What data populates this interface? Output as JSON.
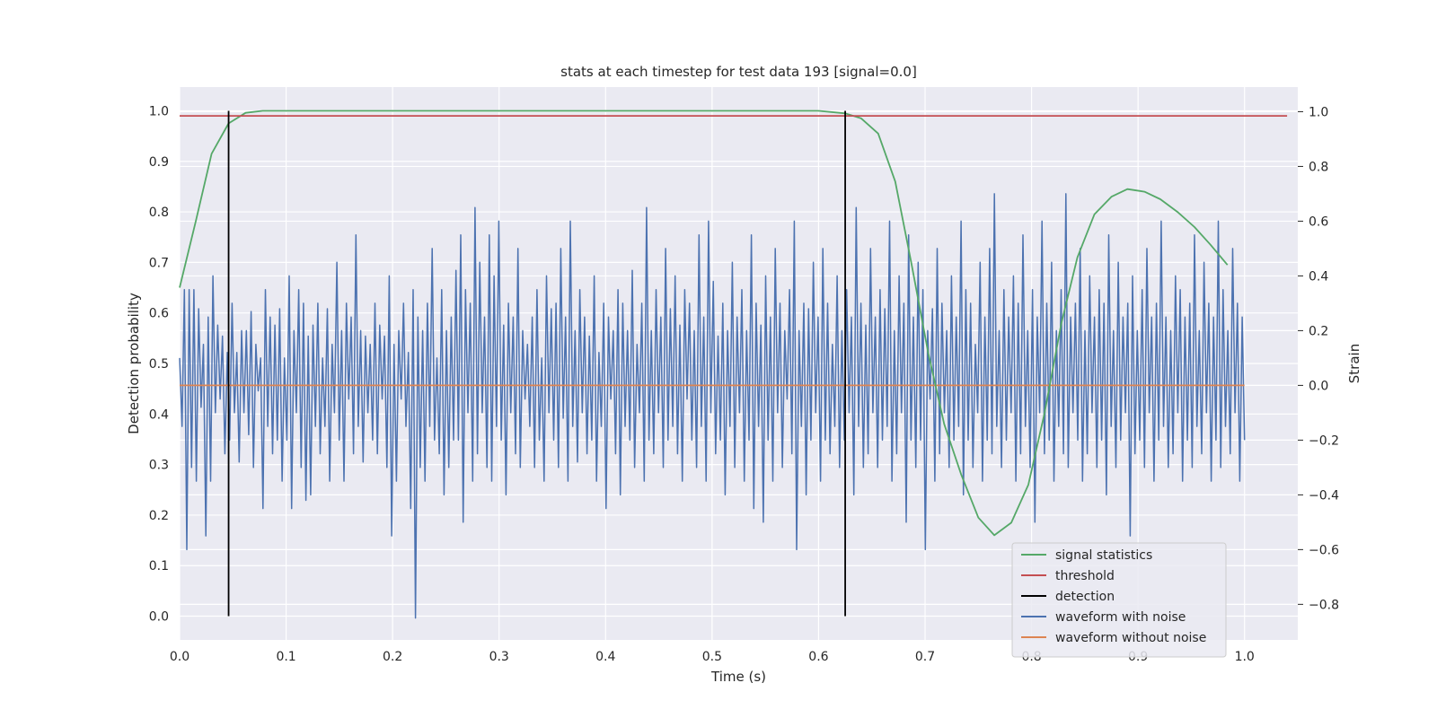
{
  "chart_data": {
    "type": "line",
    "title": "stats at each timestep for test data 193 [signal=0.0]",
    "xlabel": "Time (s)",
    "ylabel": "Detection probability",
    "ylabel_right": "Strain",
    "xlim": [
      0.0,
      1.05
    ],
    "ylim": [
      -0.047,
      1.047
    ],
    "ylim_right": [
      -0.93,
      1.09
    ],
    "x_ticks": [
      0.0,
      0.1,
      0.2,
      0.3,
      0.4,
      0.5,
      0.6,
      0.7,
      0.8,
      0.9,
      1.0
    ],
    "x_tick_labels": [
      "0.0",
      "0.1",
      "0.2",
      "0.3",
      "0.4",
      "0.5",
      "0.6",
      "0.7",
      "0.8",
      "0.9",
      "1.0"
    ],
    "y_ticks": [
      0.0,
      0.1,
      0.2,
      0.3,
      0.4,
      0.5,
      0.6,
      0.7,
      0.8,
      0.9,
      1.0
    ],
    "y_tick_labels": [
      "0.0",
      "0.1",
      "0.2",
      "0.3",
      "0.4",
      "0.5",
      "0.6",
      "0.7",
      "0.8",
      "0.9",
      "1.0"
    ],
    "y_right_ticks": [
      -0.8,
      -0.6,
      -0.4,
      -0.2,
      0.0,
      0.2,
      0.4,
      0.6,
      0.8,
      1.0
    ],
    "y_right_tick_labels": [
      "−0.8",
      "−0.6",
      "−0.4",
      "−0.2",
      "0.0",
      "0.2",
      "0.4",
      "0.6",
      "0.8",
      "1.0"
    ],
    "grid": true,
    "legend_position": "lower-right",
    "colors": {
      "signal_statistics": "#55a868",
      "threshold": "#c44e52",
      "detection": "#000000",
      "waveform_with_noise": "#4c72b0",
      "waveform_without_noise": "#dd8452",
      "axes_background": "#eaeaf2",
      "grid": "#ffffff"
    },
    "series": [
      {
        "name": "signal statistics",
        "axis": "left",
        "x": [
          0.0,
          0.015,
          0.03,
          0.046,
          0.062,
          0.078,
          0.1,
          0.2,
          0.3,
          0.4,
          0.5,
          0.6,
          0.625,
          0.64,
          0.656,
          0.672,
          0.687,
          0.703,
          0.718,
          0.734,
          0.75,
          0.765,
          0.781,
          0.797,
          0.812,
          0.828,
          0.843,
          0.859,
          0.875,
          0.89,
          0.906,
          0.921,
          0.937,
          0.953,
          0.968,
          0.984
        ],
        "values": [
          0.65,
          0.78,
          0.915,
          0.975,
          0.996,
          1.0,
          1.0,
          1.0,
          1.0,
          1.0,
          1.0,
          1.0,
          0.995,
          0.985,
          0.955,
          0.86,
          0.7,
          0.52,
          0.38,
          0.28,
          0.195,
          0.16,
          0.185,
          0.26,
          0.4,
          0.58,
          0.71,
          0.795,
          0.83,
          0.845,
          0.84,
          0.825,
          0.8,
          0.77,
          0.735,
          0.695
        ]
      },
      {
        "name": "threshold",
        "axis": "left",
        "x": [
          0.0,
          1.04
        ],
        "values": [
          0.99,
          0.99
        ]
      },
      {
        "name": "detection",
        "axis": "left",
        "segments": [
          {
            "x": 0.046,
            "values": [
              0.0,
              1.0
            ]
          },
          {
            "x": 0.625,
            "values": [
              0.0,
              1.0
            ]
          }
        ]
      },
      {
        "name": "waveform with noise",
        "axis": "right",
        "x_start": 0.0,
        "x_end": 1.0,
        "values": [
          0.1,
          -0.15,
          0.35,
          -0.6,
          0.35,
          -0.3,
          0.35,
          -0.35,
          0.28,
          -0.08,
          0.15,
          -0.55,
          0.25,
          -0.35,
          0.4,
          -0.1,
          0.22,
          -0.05,
          0.18,
          -0.25,
          0.12,
          -0.2,
          0.3,
          -0.1,
          0.12,
          -0.28,
          0.2,
          -0.1,
          0.2,
          -0.18,
          0.27,
          -0.3,
          0.15,
          -0.02,
          0.1,
          -0.45,
          0.35,
          -0.15,
          0.25,
          -0.25,
          0.22,
          -0.2,
          0.28,
          -0.35,
          0.1,
          -0.2,
          0.4,
          -0.45,
          0.2,
          -0.1,
          0.35,
          -0.3,
          0.3,
          -0.42,
          0.18,
          -0.4,
          0.22,
          -0.15,
          0.3,
          -0.25,
          0.1,
          -0.15,
          0.28,
          -0.35,
          0.15,
          -0.1,
          0.45,
          -0.2,
          0.2,
          -0.35,
          0.3,
          -0.05,
          0.25,
          -0.25,
          0.55,
          -0.15,
          0.2,
          -0.28,
          0.18,
          -0.1,
          0.15,
          -0.2,
          0.3,
          -0.25,
          0.22,
          -0.05,
          0.18,
          -0.3,
          0.4,
          -0.55,
          0.15,
          -0.35,
          0.2,
          -0.05,
          0.3,
          -0.15,
          0.12,
          -0.45,
          0.35,
          -0.85,
          0.25,
          -0.3,
          0.2,
          -0.35,
          0.3,
          -0.15,
          0.5,
          -0.2,
          0.1,
          -0.25,
          0.35,
          -0.4,
          0.2,
          -0.3,
          0.25,
          -0.2,
          0.42,
          -0.2,
          0.55,
          -0.5,
          0.35,
          -0.1,
          0.3,
          -0.35,
          0.65,
          -0.25,
          0.45,
          -0.1,
          0.25,
          -0.3,
          0.55,
          -0.35,
          0.4,
          -0.15,
          0.6,
          -0.2,
          0.22,
          -0.4,
          0.3,
          -0.1,
          0.25,
          -0.25,
          0.5,
          -0.3,
          0.2,
          -0.05,
          0.15,
          -0.15,
          0.25,
          -0.3,
          0.35,
          -0.2,
          0.1,
          -0.35,
          0.4,
          -0.1,
          0.28,
          -0.2,
          0.3,
          -0.3,
          0.5,
          -0.12,
          0.25,
          -0.35,
          0.6,
          -0.15,
          0.2,
          -0.28,
          0.35,
          -0.1,
          0.25,
          -0.25,
          0.18,
          -0.2,
          0.4,
          -0.35,
          0.12,
          -0.15,
          0.3,
          -0.45,
          0.25,
          -0.05,
          0.2,
          -0.25,
          0.35,
          -0.4,
          0.3,
          -0.15,
          0.2,
          -0.2,
          0.42,
          -0.3,
          0.15,
          -0.1,
          0.3,
          -0.35,
          0.65,
          -0.2,
          0.2,
          -0.25,
          0.35,
          -0.1,
          0.25,
          -0.3,
          0.5,
          -0.2,
          0.28,
          -0.15,
          0.4,
          -0.25,
          0.22,
          -0.35,
          0.35,
          -0.05,
          0.3,
          -0.2,
          0.2,
          -0.3,
          0.55,
          -0.15,
          0.25,
          -0.35,
          0.6,
          -0.1,
          0.38,
          -0.25,
          0.18,
          -0.2,
          0.3,
          -0.4,
          0.2,
          -0.15,
          0.45,
          -0.3,
          0.25,
          -0.1,
          0.35,
          -0.35,
          0.2,
          -0.2,
          0.55,
          -0.45,
          0.3,
          -0.15,
          0.22,
          -0.5,
          0.4,
          -0.2,
          0.25,
          -0.35,
          0.5,
          -0.1,
          0.3,
          -0.3,
          0.2,
          -0.05,
          0.35,
          -0.25,
          0.6,
          -0.6,
          0.2,
          -0.15,
          0.3,
          -0.4,
          0.28,
          -0.2,
          0.45,
          -0.1,
          0.25,
          -0.35,
          0.5,
          -0.2,
          0.3,
          -0.25,
          0.15,
          -0.15,
          0.4,
          -0.3,
          0.2,
          -0.2,
          0.35,
          -0.1,
          0.25,
          -0.4,
          0.65,
          -0.15,
          0.3,
          -0.3,
          0.22,
          -0.25,
          0.5,
          -0.1,
          0.25,
          -0.3,
          0.35,
          -0.2,
          0.28,
          -0.15,
          0.6,
          -0.35,
          0.2,
          -0.25,
          0.4,
          -0.1,
          0.3,
          -0.5,
          0.55,
          -0.2,
          0.25,
          -0.3,
          0.45,
          -0.2,
          0.35,
          -0.6,
          0.2,
          -0.05,
          0.28,
          -0.35,
          0.5,
          -0.25,
          0.3,
          -0.1,
          0.2,
          -0.3,
          0.4,
          -0.2,
          0.25,
          -0.15,
          0.6,
          -0.4,
          0.35,
          -0.2,
          0.3,
          -0.3,
          0.15,
          -0.1,
          0.45,
          -0.35,
          0.25,
          -0.2,
          0.5,
          -0.25,
          0.7,
          -0.15,
          0.2,
          -0.3,
          0.35,
          -0.2,
          0.25,
          -0.1,
          0.4,
          -0.35,
          0.3,
          -0.25,
          0.55,
          -0.15,
          0.2,
          -0.3,
          0.35,
          -0.5,
          0.25,
          -0.1,
          0.6,
          -0.25,
          0.3,
          -0.2,
          0.45,
          -0.35,
          0.2,
          -0.15,
          0.35,
          -0.25,
          0.7,
          -0.3,
          0.25,
          -0.1,
          0.3,
          -0.2,
          0.5,
          -0.35,
          0.2,
          -0.25,
          0.4,
          -0.1,
          0.25,
          -0.3,
          0.35,
          -0.2,
          0.3,
          -0.4,
          0.55,
          -0.15,
          0.2,
          -0.3,
          0.45,
          -0.2,
          0.25,
          -0.1,
          0.3,
          -0.55,
          0.4,
          -0.25,
          0.2,
          -0.2,
          0.35,
          -0.3,
          0.5,
          -0.1,
          0.25,
          -0.35,
          0.3,
          -0.2,
          0.6,
          -0.15,
          0.25,
          -0.3,
          0.2,
          -0.25,
          0.4,
          -0.1,
          0.35,
          -0.35,
          0.25,
          -0.2,
          0.3,
          -0.3,
          0.55,
          -0.15,
          0.2,
          -0.25,
          0.45,
          -0.1,
          0.3,
          -0.35,
          0.25,
          -0.2,
          0.6,
          -0.3,
          0.35,
          -0.15,
          0.2,
          -0.25,
          0.5,
          -0.1,
          0.3,
          -0.35,
          0.25,
          -0.2
        ],
        "note_values": []
      },
      {
        "name": "waveform without noise",
        "axis": "right",
        "x": [
          0.0,
          1.0
        ],
        "values": [
          0.0,
          0.0
        ]
      }
    ],
    "legend": [
      "signal statistics",
      "threshold",
      "detection",
      "waveform with noise",
      "waveform without noise"
    ]
  }
}
